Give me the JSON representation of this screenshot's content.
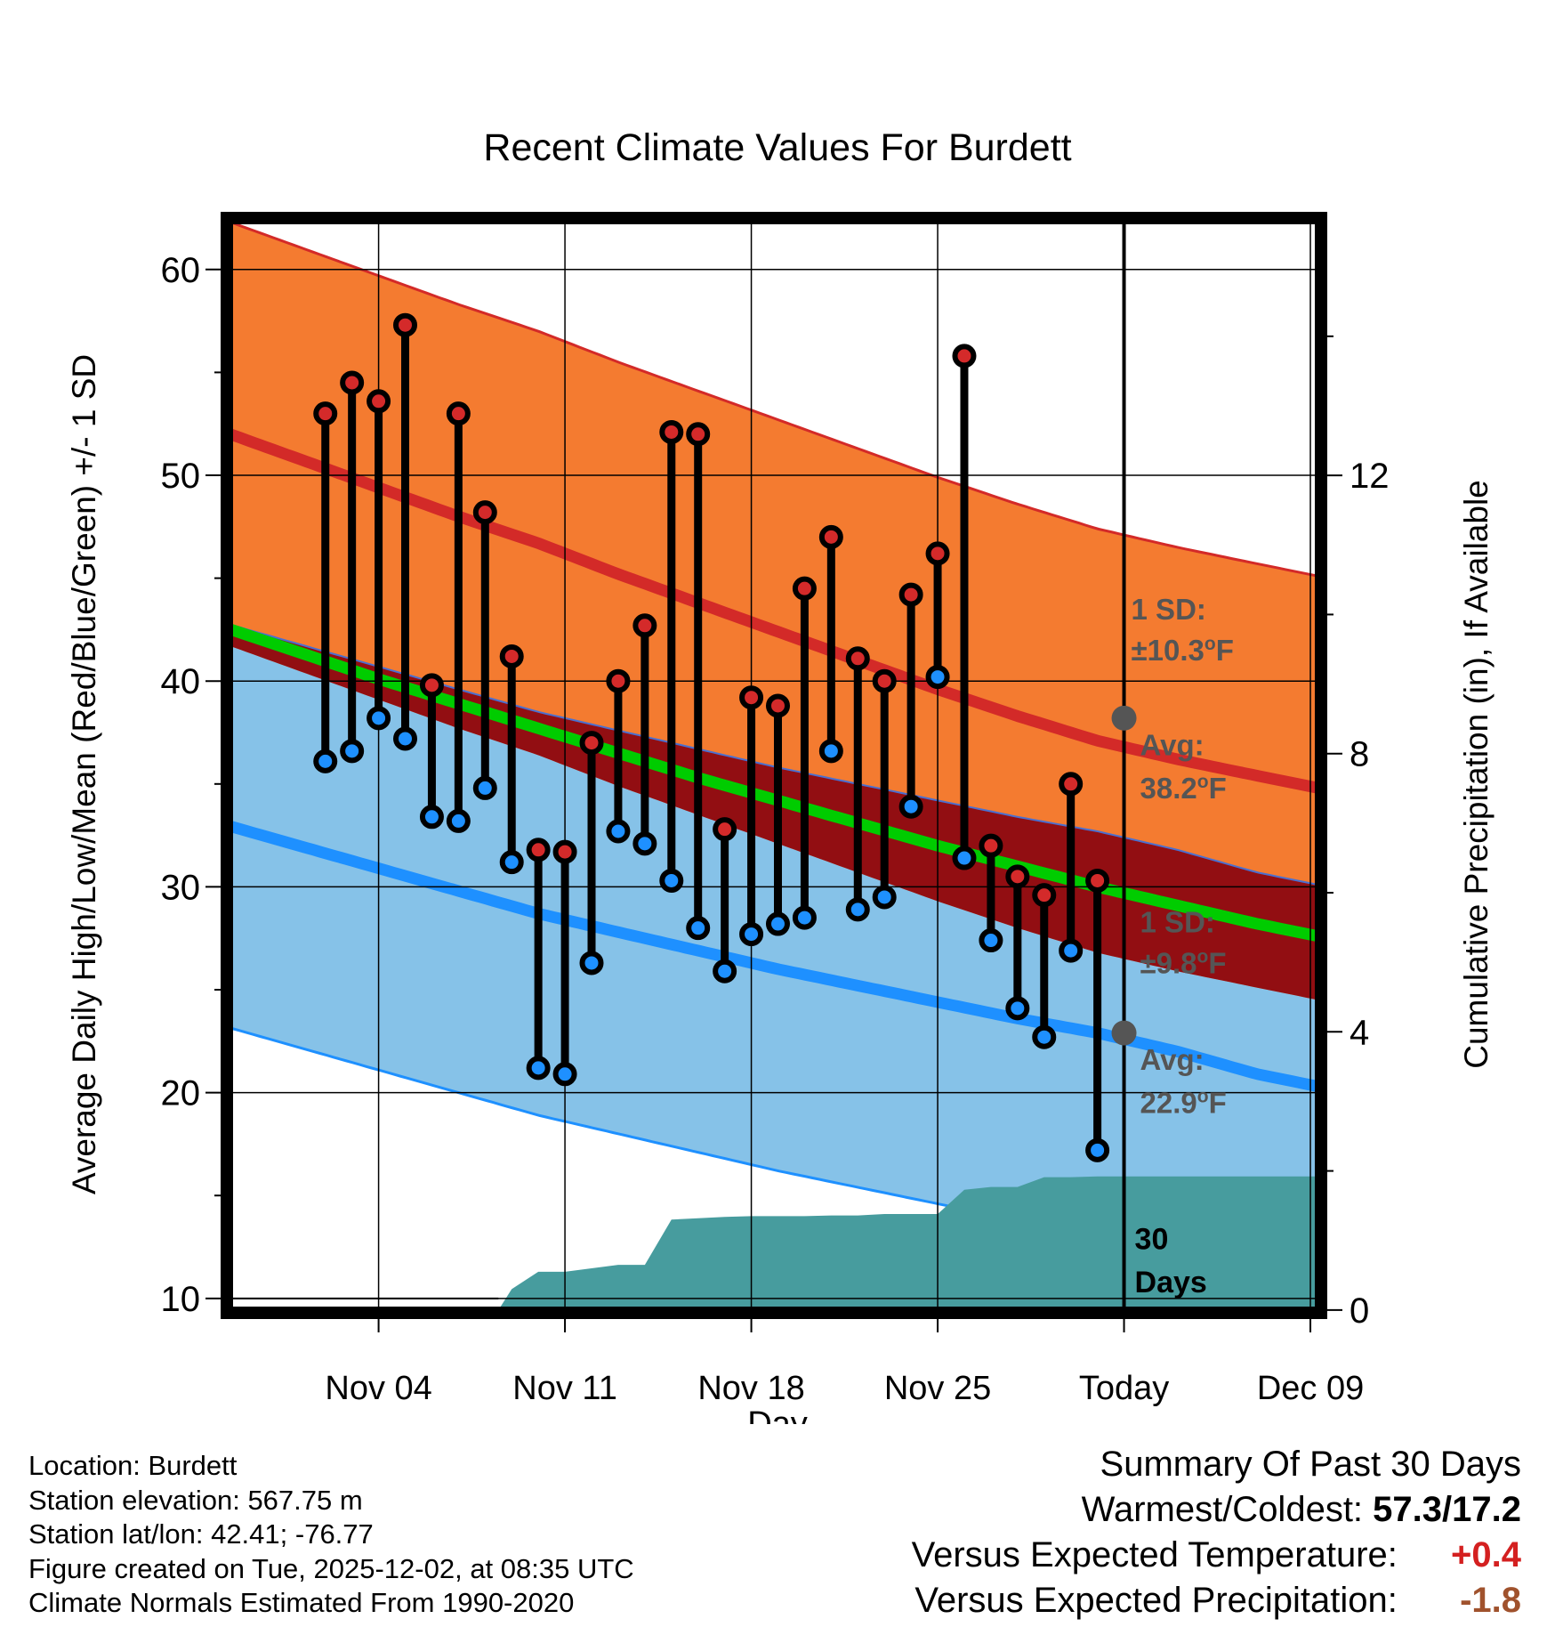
{
  "chart_data": {
    "type": "line",
    "title": "Recent Climate Values For Burdett",
    "xlabel": "Day",
    "ylabel": "Average Daily High/Low/Mean (Red/Blue/Green) +/- 1 SD",
    "y2label": "Cumulative Precipitation (in), If Available",
    "ylim": [
      9.3,
      62.5
    ],
    "y2lim": [
      -0.04,
      15.7
    ],
    "xlim": [
      -2.7,
      38.4
    ],
    "x_ticks": [
      {
        "day": 3,
        "label": "Nov 04"
      },
      {
        "day": 10,
        "label": "Nov 11"
      },
      {
        "day": 17,
        "label": "Nov 18"
      },
      {
        "day": 24,
        "label": "Nov 25"
      },
      {
        "day": 31,
        "label": "Today"
      },
      {
        "day": 38,
        "label": "Dec 09"
      }
    ],
    "y_ticks": [
      10,
      20,
      30,
      40,
      50,
      60
    ],
    "y2_ticks": [
      0,
      4,
      8,
      12
    ],
    "today_day": 31,
    "observed": {
      "days": [
        1,
        2,
        3,
        4,
        5,
        6,
        7,
        8,
        9,
        10,
        11,
        12,
        13,
        14,
        15,
        16,
        17,
        18,
        19,
        20,
        21,
        22,
        23,
        24,
        25,
        26,
        27,
        28,
        29,
        30
      ],
      "high": [
        53.0,
        54.5,
        53.6,
        57.3,
        39.8,
        53.0,
        48.2,
        41.2,
        31.8,
        31.7,
        37.0,
        40.0,
        42.7,
        52.1,
        52.0,
        32.8,
        39.2,
        38.8,
        44.5,
        47.0,
        41.1,
        40.0,
        44.2,
        46.2,
        55.8,
        32.0,
        30.5,
        29.6,
        35.0,
        30.3
      ],
      "low": [
        36.1,
        36.6,
        38.2,
        37.2,
        33.4,
        33.2,
        34.8,
        31.2,
        21.2,
        20.9,
        26.3,
        32.7,
        32.1,
        30.3,
        28.0,
        25.9,
        27.7,
        28.2,
        28.5,
        36.6,
        28.9,
        29.5,
        33.9,
        40.2,
        31.4,
        27.4,
        24.1,
        22.7,
        26.9,
        17.2
      ]
    },
    "normals": {
      "days": [
        0,
        3,
        6,
        9,
        12,
        15,
        18,
        21,
        24,
        27,
        30,
        33,
        36,
        38.3
      ],
      "high_mean": [
        50.8,
        49.4,
        48.0,
        46.7,
        45.2,
        43.8,
        42.4,
        41.0,
        39.6,
        38.3,
        37.1,
        36.2,
        35.4,
        34.8
      ],
      "low_mean": [
        32.0,
        30.9,
        29.8,
        28.7,
        27.8,
        26.9,
        26.0,
        25.2,
        24.4,
        23.6,
        22.9,
        22.0,
        20.9,
        20.3
      ],
      "avg_mean": [
        41.4,
        40.1,
        38.9,
        37.7,
        36.5,
        35.3,
        34.2,
        33.1,
        32.0,
        31.0,
        30.0,
        29.1,
        28.2,
        27.6
      ],
      "sd_high": 10.3,
      "sd_low": 9.8
    },
    "precip_cumulative": {
      "days": [
        0,
        7.5,
        8,
        9,
        10,
        11,
        12,
        13,
        14,
        15,
        16,
        17,
        18,
        19,
        20,
        21,
        22,
        23,
        24,
        25,
        26,
        27,
        28,
        29,
        30,
        31,
        38.3
      ],
      "values": [
        0,
        0,
        0.3,
        0.55,
        0.55,
        0.6,
        0.65,
        0.65,
        1.3,
        1.32,
        1.34,
        1.35,
        1.35,
        1.35,
        1.36,
        1.36,
        1.38,
        1.38,
        1.38,
        1.73,
        1.77,
        1.77,
        1.91,
        1.91,
        1.92,
        1.92,
        1.92
      ]
    },
    "annotations": {
      "high_sd": "1 SD:",
      "high_sd_value": "±10.3°F",
      "high_avg": "Avg:",
      "high_avg_value": "38.2°F",
      "high_avg_point": 38.2,
      "low_sd": "1 SD:",
      "low_sd_value": "±9.8°F",
      "low_avg": "Avg:",
      "low_avg_value": "22.9°F",
      "low_avg_point": 22.9,
      "period_line1": "30",
      "period_line2": "Days"
    },
    "colors": {
      "high_band": "#f47b30",
      "high_line": "#d32a28",
      "low_band": "#86c2e8",
      "low_line": "#1e90ff",
      "mean_line": "#00cc00",
      "overlap_band": "#920e12",
      "precip": "#479c9e",
      "high_dot": "#d42a2a",
      "low_dot": "#1e90ff",
      "annotation": "#555555"
    }
  },
  "footer": {
    "location": "Location: Burdett",
    "elevation": "Station elevation: 567.75 m",
    "latlon": "Station lat/lon: 42.41; -76.77",
    "created": "Figure created on Tue, 2025-12-02, at 08:35 UTC",
    "normals": "Climate Normals Estimated From 1990-2020"
  },
  "summary": {
    "title": "Summary Of Past 30 Days",
    "warm_cold_label": "Warmest/Coldest:",
    "warm_cold_value": "57.3/17.2",
    "temp_label": "Versus Expected Temperature:",
    "temp_value": "+0.4",
    "precip_label": "Versus Expected Precipitation:",
    "precip_value": "-1.8"
  }
}
